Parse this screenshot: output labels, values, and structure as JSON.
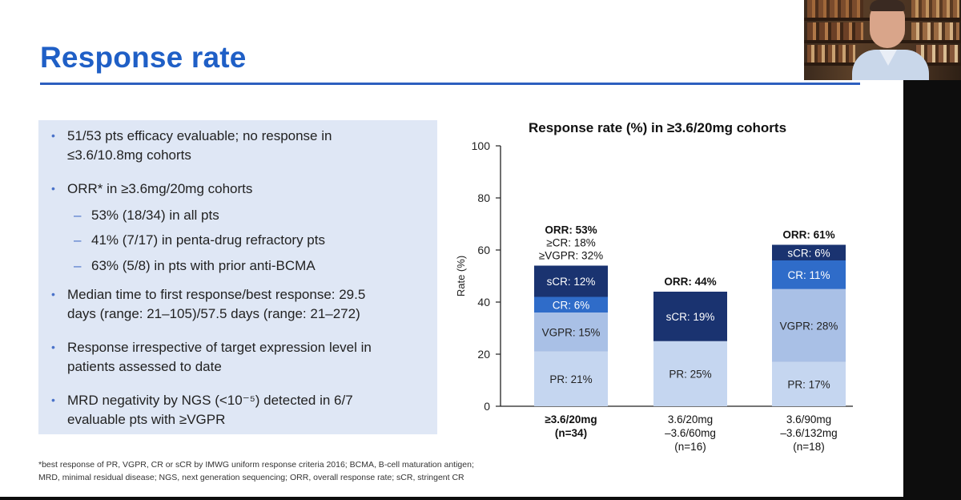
{
  "slide": {
    "title": "Response rate",
    "bullets": [
      {
        "level": 1,
        "lines": [
          "51/53 pts efficacy evaluable; no response in",
          "≤3.6/10.8mg cohorts"
        ]
      },
      {
        "level": 1,
        "lines": [
          "ORR* in ≥3.6mg/20mg cohorts"
        ]
      },
      {
        "level": 2,
        "lines": [
          "53% (18/34) in all pts"
        ]
      },
      {
        "level": 2,
        "lines": [
          "41% (7/17) in penta-drug refractory pts"
        ]
      },
      {
        "level": 2,
        "lines": [
          "63% (5/8) in pts with prior anti-BCMA"
        ]
      },
      {
        "level": 1,
        "lines": [
          "Median time to first response/best response: 29.5",
          "days (range: 21–105)/57.5 days (range: 21–272)"
        ]
      },
      {
        "level": 1,
        "lines": [
          "Response irrespective of target expression level in",
          "patients assessed to date"
        ]
      },
      {
        "level": 1,
        "lines": [
          "MRD negativity by NGS (<10⁻⁵) detected in 6/7",
          "evaluable pts with ≥VGPR"
        ]
      }
    ],
    "footnote_lines": [
      "*best response of PR, VGPR, CR or sCR by IMWG uniform response criteria 2016; BCMA, B-cell maturation antigen;",
      "MRD, minimal residual disease; NGS, next generation sequencing; ORR, overall response rate; sCR, stringent CR"
    ]
  },
  "colors": {
    "title": "#1f5fc6",
    "PR": "#c5d6f0",
    "VGPR": "#a9c0e6",
    "CR": "#2f6cc9",
    "sCR": "#1a3370"
  },
  "chart_data": {
    "type": "bar",
    "stacked": true,
    "title": "Response rate (%) in ≥3.6/20mg cohorts",
    "ylabel": "Rate (%)",
    "xlabel": "",
    "ylim": [
      0,
      100
    ],
    "yticks": [
      0,
      20,
      40,
      60,
      80,
      100
    ],
    "categories": [
      {
        "lines": [
          "≥3.6/20mg",
          "(n=34)"
        ],
        "bold": true
      },
      {
        "lines": [
          "3.6/20mg",
          "–3.6/60mg",
          "(n=16)"
        ],
        "bold": false
      },
      {
        "lines": [
          "3.6/90mg",
          "–3.6/132mg",
          "(n=18)"
        ],
        "bold": false
      }
    ],
    "series": [
      {
        "name": "PR",
        "values": [
          21,
          25,
          17
        ],
        "labels": [
          "PR: 21%",
          "PR: 25%",
          "PR: 17%"
        ],
        "label_color": "#222222"
      },
      {
        "name": "VGPR",
        "values": [
          15,
          0,
          28
        ],
        "labels": [
          "VGPR: 15%",
          "",
          "VGPR: 28%"
        ],
        "label_color": "#222222"
      },
      {
        "name": "CR",
        "values": [
          6,
          0,
          11
        ],
        "labels": [
          "CR: 6%",
          "",
          "CR: 11%"
        ],
        "label_color": "#ffffff"
      },
      {
        "name": "sCR",
        "values": [
          12,
          19,
          6
        ],
        "labels": [
          "sCR: 12%",
          "sCR: 19%",
          "sCR: 6%"
        ],
        "label_color": "#ffffff"
      }
    ],
    "annotations": [
      {
        "lines": [
          "ORR: 53%",
          "≥CR: 18%",
          "≥VGPR: 32%"
        ]
      },
      {
        "lines": [
          "ORR: 44%"
        ]
      },
      {
        "lines": [
          "ORR: 61%"
        ]
      }
    ]
  }
}
